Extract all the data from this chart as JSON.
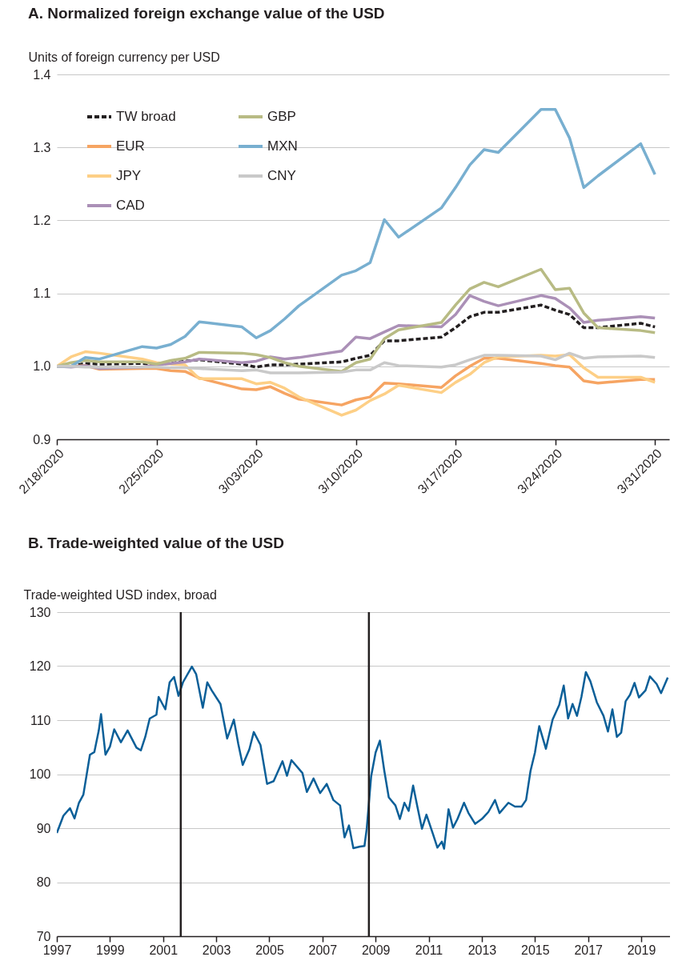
{
  "chart_data": [
    {
      "type": "line",
      "title": "A. Normalized foreign exchange value of the USD",
      "ylabel": "Units of foreign currency per USD",
      "x": [
        "2020-02-18",
        "2020-02-19",
        "2020-02-20",
        "2020-02-21",
        "2020-02-24",
        "2020-02-25",
        "2020-02-26",
        "2020-02-27",
        "2020-02-28",
        "2020-03-02",
        "2020-03-03",
        "2020-03-04",
        "2020-03-05",
        "2020-03-06",
        "2020-03-09",
        "2020-03-10",
        "2020-03-11",
        "2020-03-12",
        "2020-03-13",
        "2020-03-16",
        "2020-03-17",
        "2020-03-18",
        "2020-03-19",
        "2020-03-20",
        "2020-03-23",
        "2020-03-24",
        "2020-03-25",
        "2020-03-26",
        "2020-03-27",
        "2020-03-30",
        "2020-03-31"
      ],
      "series": [
        {
          "name": "TW broad",
          "color": "#231f20",
          "line_style": "dashed",
          "values": [
            1.0,
            1.0,
            1.004,
            1.003,
            1.004,
            1.003,
            1.004,
            1.007,
            1.009,
            1.003,
            0.999,
            1.002,
            1.002,
            1.003,
            1.006,
            1.011,
            1.015,
            1.035,
            1.035,
            1.04,
            1.053,
            1.068,
            1.074,
            1.074,
            1.084,
            1.077,
            1.071,
            1.053,
            1.053,
            1.059,
            1.054
          ]
        },
        {
          "name": "EUR",
          "color": "#f6a462",
          "values": [
            1.0,
            1.0,
            1.001,
            0.996,
            0.997,
            0.997,
            0.994,
            0.993,
            0.984,
            0.969,
            0.968,
            0.972,
            0.963,
            0.955,
            0.947,
            0.954,
            0.958,
            0.977,
            0.976,
            0.971,
            0.987,
            1.0,
            1.011,
            1.011,
            1.004,
            1.001,
            0.999,
            0.98,
            0.977,
            0.982,
            0.982
          ]
        },
        {
          "name": "JPY",
          "color": "#fdcf86",
          "values": [
            1.0,
            1.013,
            1.02,
            1.018,
            1.01,
            1.005,
            1.003,
            1.002,
            0.983,
            0.983,
            0.976,
            0.978,
            0.97,
            0.958,
            0.933,
            0.94,
            0.953,
            0.962,
            0.974,
            0.964,
            0.978,
            0.989,
            1.005,
            1.013,
            1.015,
            1.014,
            1.016,
            0.998,
            0.985,
            0.985,
            0.978
          ]
        },
        {
          "name": "CAD",
          "color": "#ab90b7",
          "values": [
            1.0,
            0.999,
            1.001,
            0.997,
            0.999,
            1.002,
            1.004,
            1.006,
            1.01,
            1.005,
            1.007,
            1.013,
            1.01,
            1.012,
            1.021,
            1.04,
            1.038,
            1.047,
            1.056,
            1.054,
            1.071,
            1.097,
            1.089,
            1.083,
            1.097,
            1.093,
            1.08,
            1.06,
            1.063,
            1.068,
            1.066
          ]
        },
        {
          "name": "GBP",
          "color": "#b8bb84",
          "values": [
            1.0,
            1.005,
            1.008,
            1.006,
            1.006,
            1.003,
            1.008,
            1.011,
            1.019,
            1.018,
            1.016,
            1.012,
            1.005,
            1.0,
            0.993,
            1.005,
            1.01,
            1.038,
            1.05,
            1.06,
            1.084,
            1.106,
            1.115,
            1.109,
            1.133,
            1.105,
            1.107,
            1.073,
            1.053,
            1.049,
            1.046
          ]
        },
        {
          "name": "MXN",
          "color": "#78afd0",
          "values": [
            1.0,
            1.0,
            1.012,
            1.01,
            1.027,
            1.025,
            1.03,
            1.041,
            1.061,
            1.054,
            1.039,
            1.049,
            1.065,
            1.083,
            1.125,
            1.131,
            1.142,
            1.201,
            1.177,
            1.217,
            1.245,
            1.276,
            1.297,
            1.293,
            1.352,
            1.352,
            1.313,
            1.245,
            1.261,
            1.305,
            1.263
          ]
        },
        {
          "name": "CNY",
          "color": "#c9c9c9",
          "values": [
            1.0,
            1.0,
            0.999,
            0.999,
            0.999,
            0.999,
            0.998,
            0.998,
            0.997,
            0.994,
            0.995,
            0.991,
            0.991,
            0.991,
            0.992,
            0.995,
            0.995,
            1.005,
            1.001,
            0.999,
            1.002,
            1.009,
            1.015,
            1.015,
            1.014,
            1.009,
            1.018,
            1.011,
            1.013,
            1.014,
            1.012
          ]
        }
      ],
      "xlim": [
        "2020-02-18",
        "2020-04-01"
      ],
      "xticks": [
        {
          "value": "2020-02-18",
          "label": "2/18/2020"
        },
        {
          "value": "2020-02-25",
          "label": "2/25/2020"
        },
        {
          "value": "2020-03-03",
          "label": "3/03/2020"
        },
        {
          "value": "2020-03-10",
          "label": "3/10/2020"
        },
        {
          "value": "2020-03-17",
          "label": "3/17/2020"
        },
        {
          "value": "2020-03-24",
          "label": "3/24/2020"
        },
        {
          "value": "2020-03-31",
          "label": "3/31/2020"
        }
      ],
      "ylim": [
        0.9,
        1.4
      ],
      "yticks": [
        {
          "value": 0.9,
          "label": "0.9"
        },
        {
          "value": 1,
          "label": "1.0"
        },
        {
          "value": 1.1,
          "label": "1.1"
        },
        {
          "value": 1.2,
          "label": "1.2"
        },
        {
          "value": 1.3,
          "label": "1.3"
        },
        {
          "value": 1.4,
          "label": "1.4"
        }
      ],
      "grid": "y",
      "legend": "top left"
    },
    {
      "type": "line",
      "title": "B. Trade-weighted value of the USD",
      "ylabel": "Trade-weighted USD index, broad",
      "x": [
        "1997-01",
        "1997-04",
        "1997-07",
        "1997-09",
        "1997-11",
        "1998-01",
        "1998-04",
        "1998-06",
        "1998-08",
        "1998-09",
        "1998-11",
        "1999-01",
        "1999-03",
        "1999-06",
        "1999-09",
        "2000-01",
        "2000-03",
        "2000-05",
        "2000-07",
        "2000-10",
        "2000-11",
        "2001-02",
        "2001-04",
        "2001-06",
        "2001-08",
        "2001-10",
        "2002-02",
        "2002-04",
        "2002-07",
        "2002-09",
        "2002-11",
        "2003-03",
        "2003-06",
        "2003-09",
        "2003-11",
        "2004-01",
        "2004-04",
        "2004-06",
        "2004-09",
        "2004-12",
        "2005-03",
        "2005-07",
        "2005-09",
        "2005-11",
        "2006-04",
        "2006-06",
        "2006-09",
        "2006-12",
        "2007-03",
        "2007-06",
        "2007-09",
        "2007-11",
        "2008-01",
        "2008-03",
        "2008-06",
        "2008-08",
        "2008-09",
        "2008-11",
        "2009-01",
        "2009-03",
        "2009-05",
        "2009-07",
        "2009-10",
        "2009-12",
        "2010-02",
        "2010-04",
        "2010-06",
        "2010-08",
        "2010-10",
        "2010-12",
        "2011-03",
        "2011-05",
        "2011-07",
        "2011-08",
        "2011-10",
        "2011-12",
        "2012-02",
        "2012-05",
        "2012-07",
        "2012-10",
        "2013-01",
        "2013-04",
        "2013-07",
        "2013-09",
        "2014-01",
        "2014-04",
        "2014-07",
        "2014-09",
        "2014-11",
        "2015-01",
        "2015-03",
        "2015-06",
        "2015-09",
        "2015-12",
        "2016-02",
        "2016-04",
        "2016-06",
        "2016-08",
        "2016-10",
        "2016-12",
        "2017-02",
        "2017-05",
        "2017-08",
        "2017-10",
        "2017-12",
        "2018-02",
        "2018-04",
        "2018-06",
        "2018-08",
        "2018-10",
        "2018-12",
        "2019-03",
        "2019-05",
        "2019-08",
        "2019-10",
        "2020-01"
      ],
      "series": [
        {
          "color": "#0b5f98",
          "values": [
            89.1,
            92.3,
            93.7,
            91.8,
            94.7,
            96.2,
            103.6,
            104.1,
            108.1,
            111.1,
            103.6,
            105.1,
            108.3,
            105.9,
            108.1,
            104.9,
            104.4,
            106.9,
            110.3,
            111.0,
            114.3,
            112.0,
            117.0,
            118.0,
            114.5,
            117.0,
            119.9,
            118.5,
            112.3,
            117.0,
            115.5,
            113.0,
            106.6,
            110.1,
            105.6,
            101.7,
            104.6,
            107.8,
            105.4,
            98.2,
            98.7,
            102.4,
            99.7,
            102.6,
            100.2,
            96.7,
            99.2,
            96.5,
            98.2,
            95.2,
            94.2,
            88.3,
            90.5,
            86.3,
            86.6,
            86.7,
            89.9,
            99.6,
            104.0,
            106.2,
            100.6,
            95.7,
            94.2,
            91.7,
            94.7,
            93.2,
            97.9,
            93.8,
            89.9,
            92.5,
            88.9,
            86.4,
            87.5,
            86.2,
            93.5,
            90.1,
            91.7,
            94.7,
            92.8,
            90.8,
            91.7,
            93.0,
            95.2,
            92.8,
            94.7,
            94.0,
            94.0,
            95.2,
            100.6,
            104.0,
            108.9,
            104.7,
            110.1,
            112.8,
            116.4,
            110.3,
            113.0,
            110.8,
            114.3,
            118.9,
            117.2,
            113.3,
            110.8,
            107.9,
            112.0,
            106.9,
            107.7,
            113.5,
            114.7,
            116.9,
            114.2,
            115.5,
            118.1,
            116.7,
            115.0,
            117.9
          ]
        }
      ],
      "xlim": [
        "1997-01",
        "2020-02"
      ],
      "xticks": [
        "1997",
        "1999",
        "2001",
        "2003",
        "2005",
        "2007",
        "2009",
        "2011",
        "2013",
        "2015",
        "2017",
        "2019"
      ],
      "ylim": [
        70,
        130
      ],
      "yticks": [
        70,
        80,
        90,
        100,
        110,
        120,
        130
      ],
      "ref_lines": [
        {
          "axis": "x",
          "value": "2001-09",
          "color": "#231f20"
        },
        {
          "axis": "x",
          "value": "2008-10",
          "color": "#231f20"
        }
      ],
      "grid": "y"
    }
  ]
}
